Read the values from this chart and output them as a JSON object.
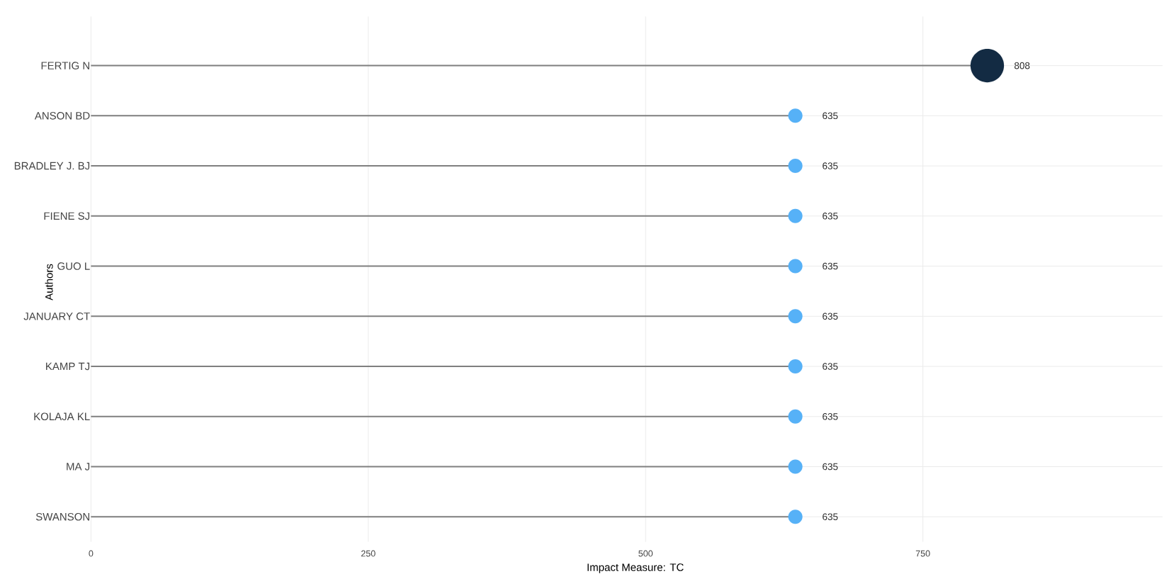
{
  "chart_data": {
    "type": "lollipop",
    "orientation": "horizontal",
    "categories": [
      "FERTIG N",
      "ANSON BD",
      "BRADLEY J. BJ",
      "FIENE SJ",
      "GUO L",
      "JANUARY CT",
      "KAMP TJ",
      "KOLAJA KL",
      "MA J",
      "SWANSON"
    ],
    "values": [
      808,
      635,
      635,
      635,
      635,
      635,
      635,
      635,
      635,
      635
    ],
    "colors": [
      "#132b43",
      "#56b1f7",
      "#56b1f7",
      "#56b1f7",
      "#56b1f7",
      "#56b1f7",
      "#56b1f7",
      "#56b1f7",
      "#56b1f7",
      "#56b1f7"
    ],
    "sizes": [
      1,
      0.18,
      0.18,
      0.18,
      0.18,
      0.18,
      0.18,
      0.18,
      0.18,
      0.18
    ],
    "xlabel": "Impact Measure: TC",
    "ylabel": "Authors",
    "xlim": [
      0,
      966
    ],
    "xticks": [
      0,
      250,
      500,
      750
    ],
    "grid": true,
    "data_labels": true,
    "marker": "circle"
  }
}
